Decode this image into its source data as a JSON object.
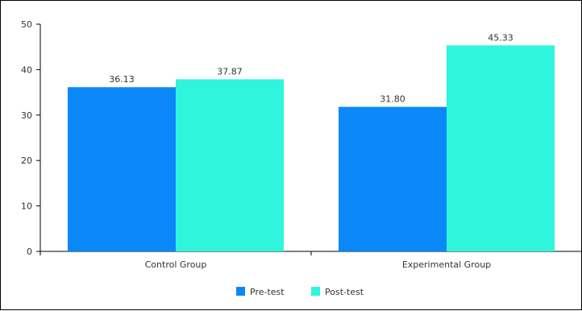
{
  "chart_data": {
    "type": "bar",
    "categories": [
      "Control Group",
      "Experimental Group"
    ],
    "series": [
      {
        "name": "Pre-test",
        "values": [
          36.13,
          31.8
        ],
        "labels": [
          "36.13",
          "31.80"
        ],
        "color": "#0a88fa"
      },
      {
        "name": "Post-test",
        "values": [
          37.87,
          45.33
        ],
        "labels": [
          "37.87",
          "45.33"
        ],
        "color": "#2ef5dc"
      }
    ],
    "ylim": [
      0,
      50
    ],
    "yticks": [
      0,
      10,
      20,
      30,
      40,
      50
    ],
    "ytick_labels": [
      "0",
      "10",
      "20",
      "30",
      "40",
      "50"
    ],
    "grid": false,
    "legend_position": "bottom"
  }
}
